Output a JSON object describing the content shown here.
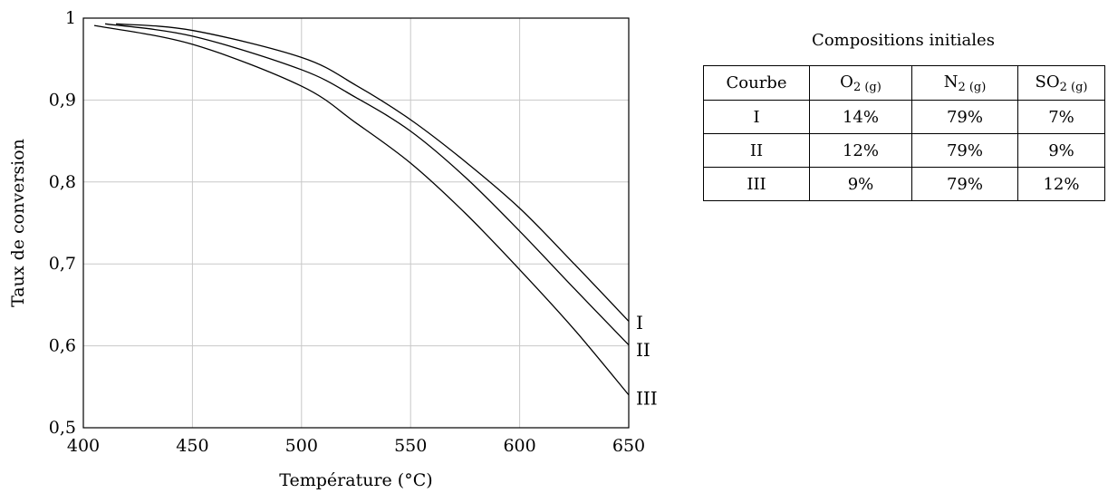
{
  "chart_data": {
    "type": "line",
    "title": "",
    "xlabel": "Température (°C)",
    "ylabel": "Taux de conversion",
    "xlim": [
      400,
      650
    ],
    "ylim": [
      0.5,
      1
    ],
    "x_ticks": [
      400,
      450,
      500,
      550,
      600,
      650
    ],
    "x_tick_labels": [
      "400",
      "450",
      "500",
      "550",
      "600",
      "650"
    ],
    "y_ticks": [
      0.5,
      0.6,
      0.7,
      0.8,
      0.9,
      1
    ],
    "y_tick_labels": [
      "0,5",
      "0,6",
      "0,7",
      "0,8",
      "0,9",
      "1"
    ],
    "grid": true,
    "series": [
      {
        "name": "I",
        "x": [
          415,
          450,
          500,
          525,
          550,
          575,
          600,
          625,
          650
        ],
        "y": [
          0.993,
          0.985,
          0.952,
          0.918,
          0.876,
          0.825,
          0.768,
          0.7,
          0.63
        ]
      },
      {
        "name": "II",
        "x": [
          410,
          450,
          500,
          525,
          550,
          575,
          600,
          625,
          650
        ],
        "y": [
          0.993,
          0.978,
          0.937,
          0.903,
          0.862,
          0.806,
          0.74,
          0.67,
          0.601
        ]
      },
      {
        "name": "III",
        "x": [
          405,
          450,
          500,
          525,
          550,
          575,
          600,
          625,
          650
        ],
        "y": [
          0.991,
          0.968,
          0.917,
          0.872,
          0.823,
          0.762,
          0.693,
          0.62,
          0.54
        ]
      }
    ]
  },
  "composition_table": {
    "title": "Compositions initiales",
    "header": {
      "courbe": "Courbe",
      "o2": {
        "base": "O",
        "sub": "2 (g)"
      },
      "n2": {
        "base": "N",
        "sub": "2 (g)"
      },
      "so2": {
        "base": "SO",
        "sub": "2 (g)"
      }
    },
    "rows": [
      [
        "I",
        "14%",
        "79%",
        "7%"
      ],
      [
        "II",
        "12%",
        "79%",
        "9%"
      ],
      [
        "III",
        "9%",
        "79%",
        "12%"
      ]
    ]
  }
}
